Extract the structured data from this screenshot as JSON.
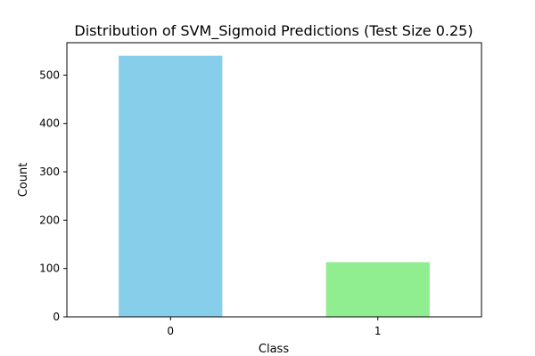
{
  "chart_data": {
    "type": "bar",
    "title": "Distribution of SVM_Sigmoid Predictions (Test Size 0.25)",
    "xlabel": "Class",
    "ylabel": "Count",
    "categories": [
      "0",
      "1"
    ],
    "values": [
      540,
      113
    ],
    "colors": [
      "#87ceeb",
      "#90ee90"
    ],
    "ylim": [
      0,
      567
    ],
    "yticks": [
      0,
      100,
      200,
      300,
      400,
      500
    ],
    "grid": false
  }
}
